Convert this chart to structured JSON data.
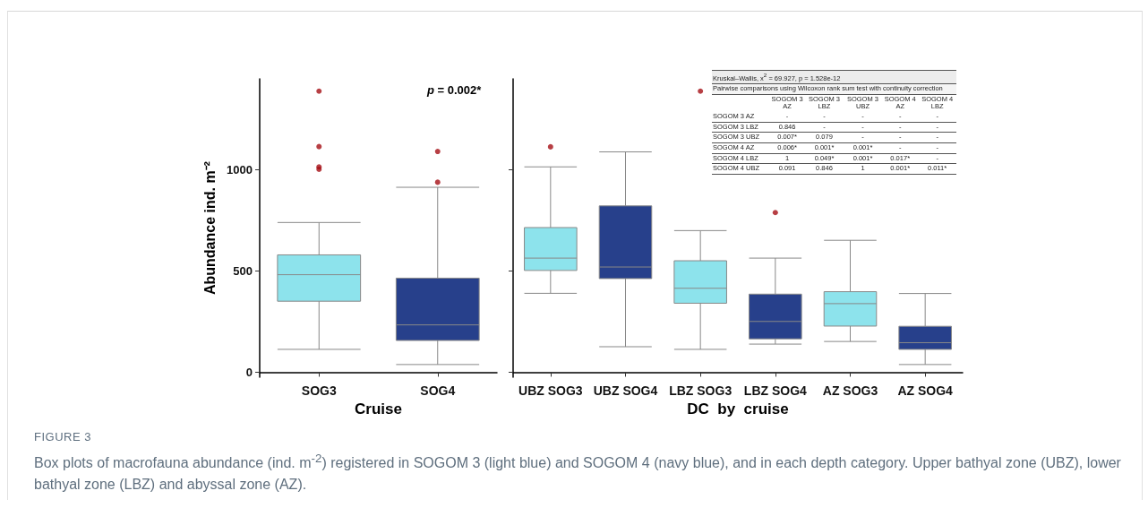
{
  "chart_data": [
    {
      "type": "box",
      "xlabel": "Cruise",
      "ylabel": "Abundance ind. m⁻²",
      "categories": [
        "SOG3",
        "SOG4"
      ],
      "colors": [
        "#8de3ec",
        "#27408b"
      ],
      "boxes": [
        {
          "low": 113,
          "q1": 351,
          "median": 482,
          "q3": 580,
          "high": 740,
          "outliers": [
            1389,
            1115,
            1015,
            1003
          ]
        },
        {
          "low": 38,
          "q1": 157,
          "median": 234,
          "q3": 465,
          "high": 914,
          "outliers": [
            1091,
            939
          ]
        }
      ],
      "ylim": [
        -25,
        1450
      ],
      "yticks": [
        0,
        500,
        1000
      ],
      "grid": false,
      "annotations": [
        "p = 0.002*",
        "FIGURE 3",
        "Box plots of macrofauna abundance (ind. m$^{-2}$) registered in SOGOM 3 (light blue) and SOGOM 4 (navy blue), and in each depth category. Upper bathyal zone (UBZ), lower bathyal zone (LBZ) and abyssal zone (AZ)."
      ]
    },
    {
      "type": "box",
      "xlabel": "DC  by  cruise",
      "categories": [
        "UBZ SOG3",
        "UBZ SOG4",
        "LBZ SOG3",
        "LBZ SOG4",
        "AZ SOG3",
        "AZ SOG4"
      ],
      "colors": [
        "#8de3ec",
        "#27408b",
        "#8de3ec",
        "#27408b",
        "#8de3ec",
        "#27408b"
      ],
      "boxes": [
        {
          "low": 390,
          "q1": 503,
          "median": 564,
          "q3": 715,
          "high": 1015,
          "outliers": [
            1114
          ]
        },
        {
          "low": 126,
          "q1": 463,
          "median": 520,
          "q3": 822,
          "high": 1089
        },
        {
          "low": 113,
          "q1": 341,
          "median": 415,
          "q3": 551,
          "high": 700,
          "outliers": [
            1389
          ]
        },
        {
          "low": 139,
          "q1": 165,
          "median": 251,
          "q3": 386,
          "high": 564,
          "outliers": [
            789
          ]
        },
        {
          "low": 152,
          "q1": 228,
          "median": 339,
          "q3": 398,
          "high": 652
        },
        {
          "low": 38,
          "q1": 113,
          "median": 146,
          "q3": 227,
          "high": 389
        }
      ],
      "ylim": [
        -25,
        1450
      ],
      "yticks": [
        0,
        500,
        1000
      ],
      "grid": false,
      "tick_labels": "x",
      "annotations": [
        "Kruskal–Wallis, x$^{2}$ = 69.927, p = 1.528e-12",
        "Pairwise comparisons using Wilcoxon rank sum test with continuity correction",
        "SOGOM 3 AZ",
        "SOGOM 3 LBZ",
        "SOGOM 3 UBZ",
        "SOGOM 4 AZ",
        "SOGOM 4 LBZ",
        "SOGOM 3 AZ",
        "-",
        "-",
        "-",
        "-",
        "-",
        "SOGOM 3 LBZ",
        "0.846",
        "-",
        "-",
        "-",
        "-",
        "SOGOM 3 UBZ",
        "0.007*",
        "0.079",
        "-",
        "-",
        "-",
        "SOGOM 4 AZ",
        "0.006*",
        "0.001*",
        "0.001*",
        "-",
        "-",
        "SOGOM 4 LBZ",
        "1",
        "0.049*",
        "0.001*",
        "0.017*",
        "-",
        "SOGOM 4 UBZ",
        "0.091",
        "0.846",
        "1",
        "0.001*",
        "0.011*"
      ]
    }
  ]
}
